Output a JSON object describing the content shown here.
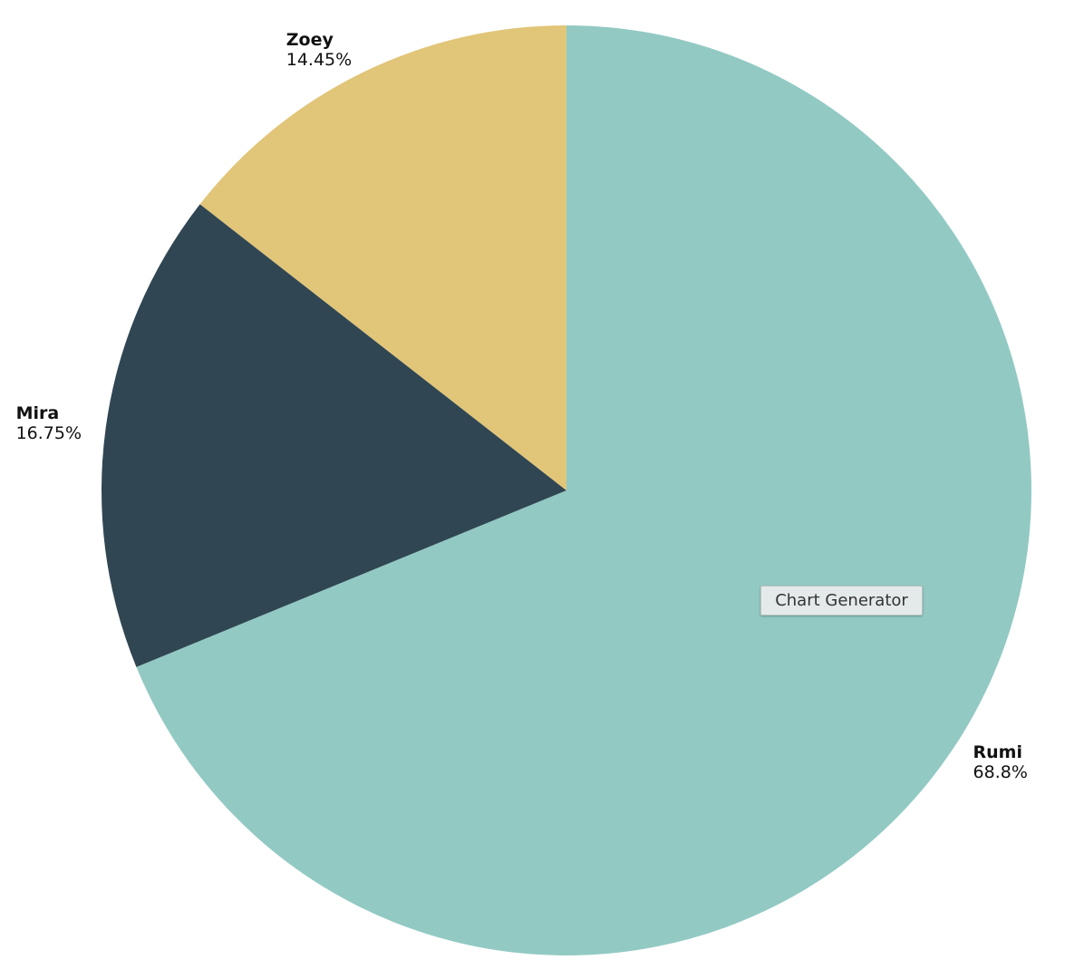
{
  "chart_data": {
    "type": "pie",
    "categories": [
      "Rumi",
      "Mira",
      "Zoey"
    ],
    "values": [
      68.8,
      16.75,
      14.45
    ],
    "value_labels": [
      "68.8%",
      "16.75%",
      "14.45%"
    ],
    "colors": [
      "#92c9c3",
      "#304653",
      "#e1c578"
    ],
    "tooltip": "Chart Generator"
  }
}
